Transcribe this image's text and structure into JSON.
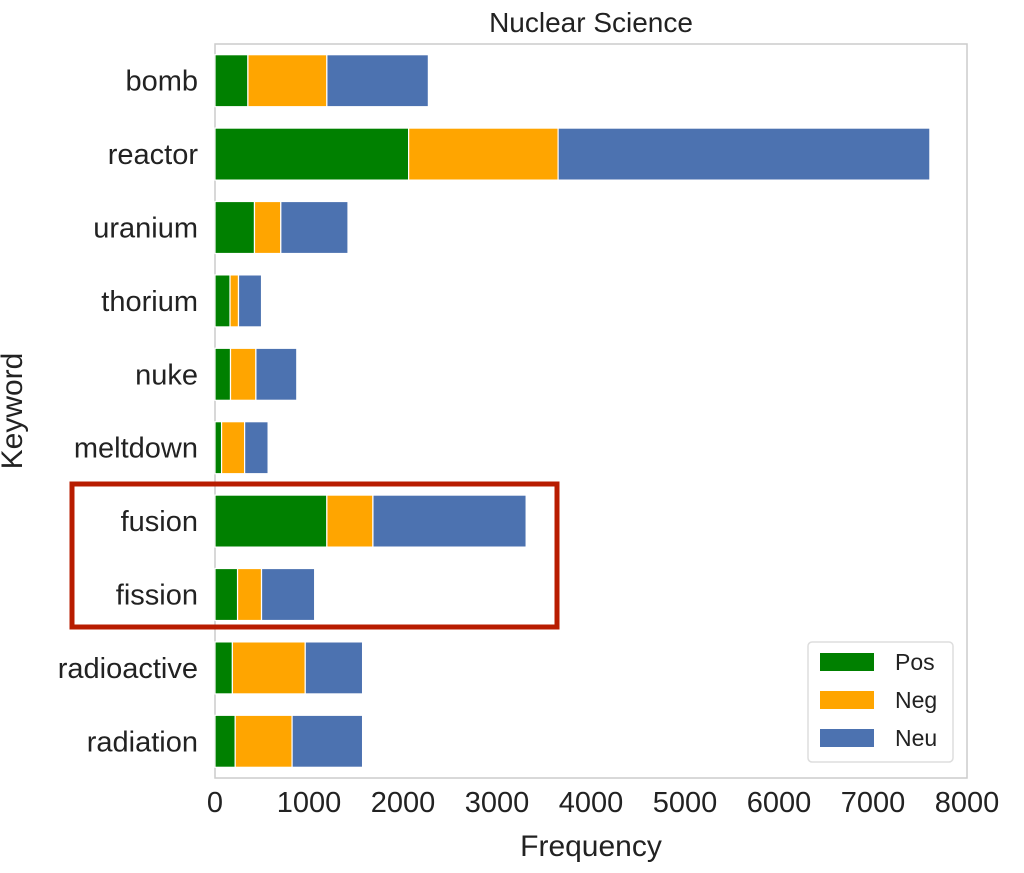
{
  "chart_data": {
    "type": "bar",
    "orientation": "horizontal",
    "stacked": true,
    "title": "Nuclear Science",
    "xlabel": "Frequency",
    "ylabel": "Keyword",
    "xlim": [
      0,
      8000
    ],
    "xticks": [
      0,
      1000,
      2000,
      3000,
      4000,
      5000,
      6000,
      7000,
      8000
    ],
    "grid": false,
    "legend_position": "bottom-right",
    "categories": [
      "bomb",
      "reactor",
      "uranium",
      "thorium",
      "nuke",
      "meltdown",
      "fusion",
      "fission",
      "radioactive",
      "radiation"
    ],
    "series": [
      {
        "name": "Pos",
        "color": "#008000",
        "values": [
          350,
          2060,
          420,
          160,
          165,
          70,
          1190,
          240,
          185,
          215
        ]
      },
      {
        "name": "Neg",
        "color": "#FFA500",
        "values": [
          840,
          1590,
          280,
          90,
          270,
          245,
          490,
          255,
          775,
          605
        ]
      },
      {
        "name": "Neu",
        "color": "#4C72B0",
        "values": [
          1080,
          3955,
          715,
          245,
          435,
          250,
          1630,
          565,
          610,
          750
        ]
      }
    ],
    "highlight": {
      "categories": [
        "fusion",
        "fission"
      ],
      "color": "#B81C00"
    }
  }
}
